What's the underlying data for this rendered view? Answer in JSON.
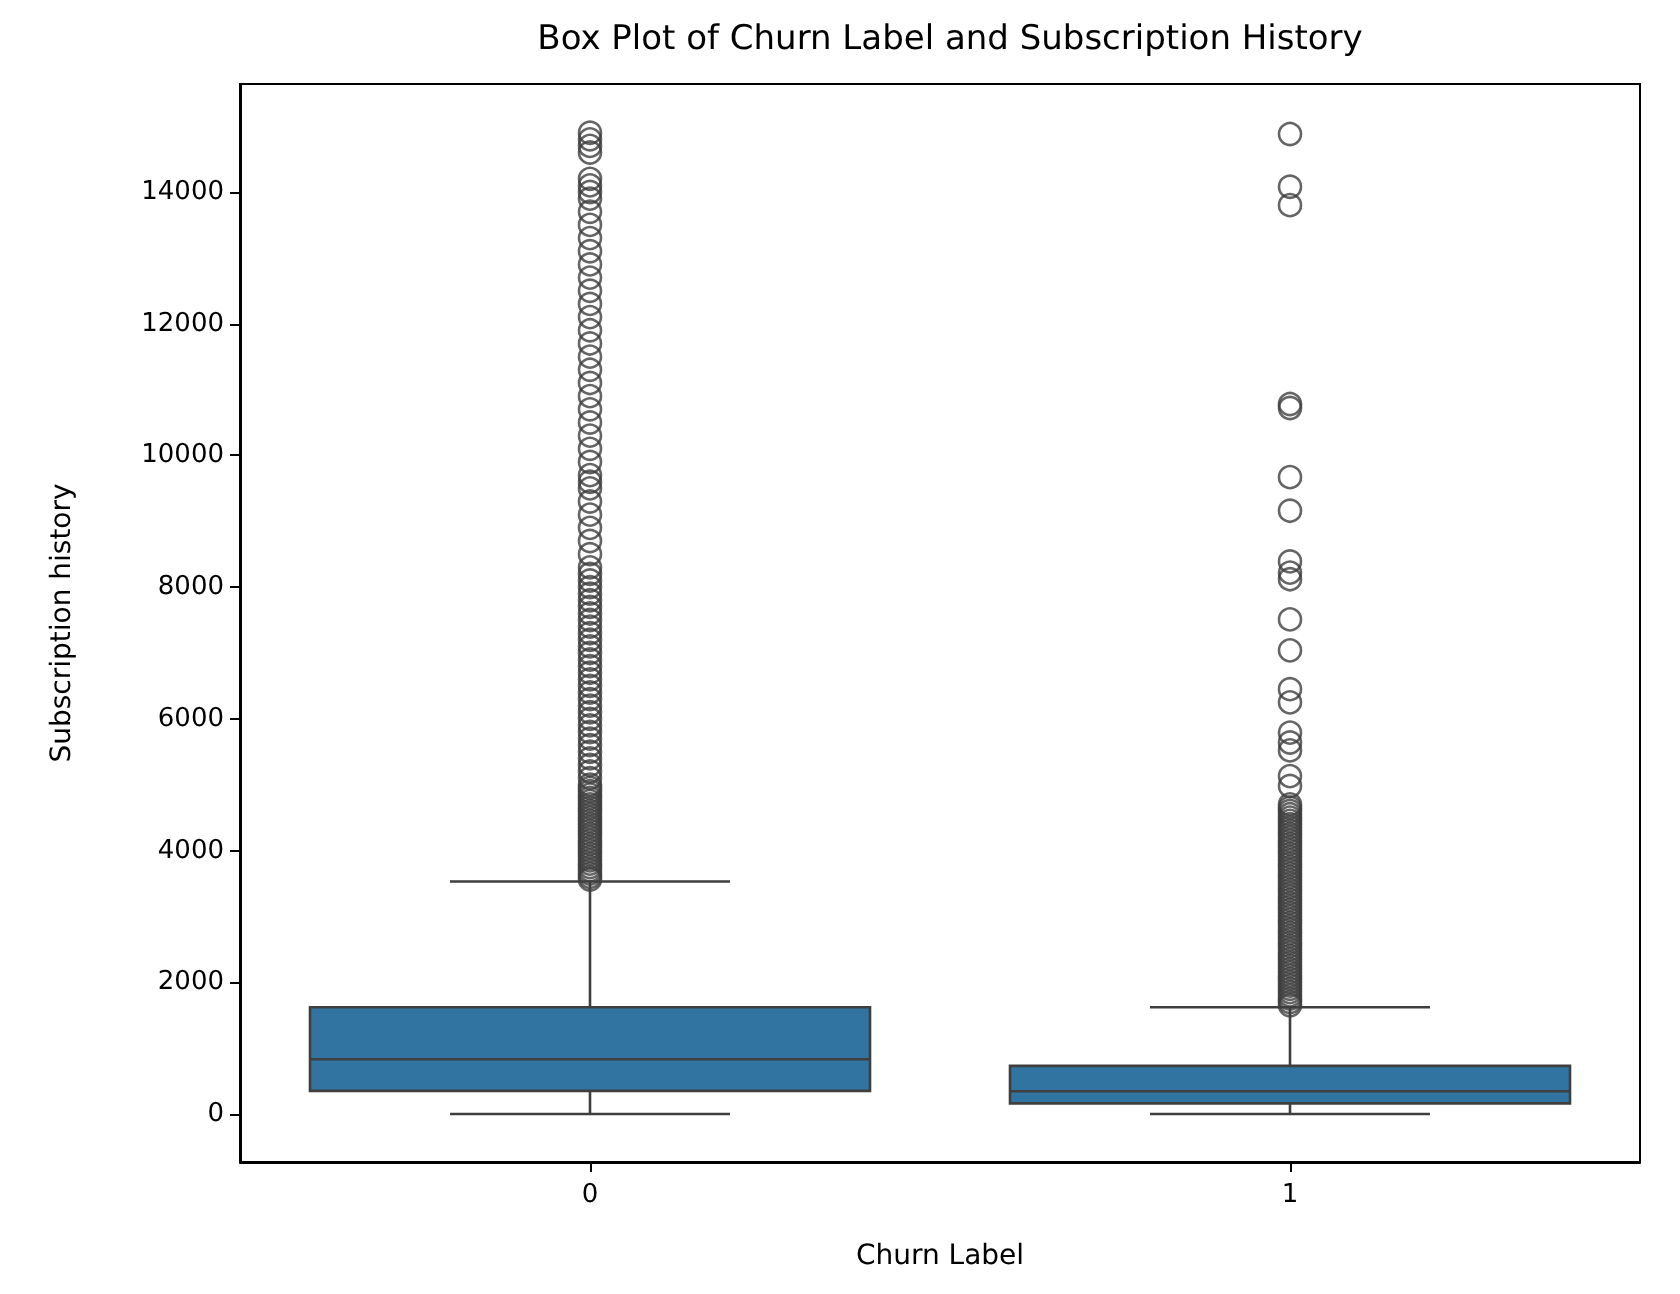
{
  "chart_data": {
    "type": "box",
    "title": "Box Plot of Churn Label and Subscription History",
    "xlabel": "Churn Label",
    "ylabel": "Subscription history",
    "categories": [
      "0",
      "1"
    ],
    "color": "#3274a1",
    "boxes": [
      {
        "low": 0,
        "q1": 350,
        "median": 830,
        "q3": 1620,
        "high": 3530,
        "outliers": [
          3560,
          3600,
          3650,
          3700,
          3750,
          3800,
          3850,
          3900,
          3950,
          4000,
          4050,
          4100,
          4150,
          4200,
          4250,
          4300,
          4350,
          4400,
          4450,
          4500,
          4550,
          4600,
          4650,
          4700,
          4750,
          4800,
          4850,
          4900,
          4950,
          5000,
          5100,
          5200,
          5300,
          5400,
          5500,
          5600,
          5700,
          5800,
          5900,
          6000,
          6100,
          6200,
          6300,
          6400,
          6500,
          6600,
          6700,
          6800,
          6900,
          7000,
          7100,
          7200,
          7300,
          7400,
          7500,
          7600,
          7700,
          7800,
          7900,
          8000,
          8100,
          8200,
          8300,
          8500,
          8700,
          8900,
          9100,
          9300,
          9500,
          9600,
          9700,
          9900,
          10100,
          10300,
          10500,
          10700,
          10900,
          11100,
          11300,
          11500,
          11700,
          11900,
          12100,
          12300,
          12500,
          12700,
          12900,
          13100,
          13300,
          13500,
          13700,
          13900,
          14000,
          14100,
          14200,
          14600,
          14700,
          14800,
          14900
        ]
      },
      {
        "low": 0,
        "q1": 160,
        "median": 345,
        "q3": 730,
        "high": 1620,
        "outliers": [
          1650,
          1700,
          1750,
          1800,
          1850,
          1900,
          1950,
          2000,
          2050,
          2100,
          2150,
          2200,
          2250,
          2300,
          2350,
          2400,
          2450,
          2500,
          2550,
          2600,
          2650,
          2700,
          2750,
          2800,
          2850,
          2900,
          2950,
          3000,
          3050,
          3100,
          3150,
          3200,
          3250,
          3300,
          3350,
          3400,
          3450,
          3500,
          3550,
          3600,
          3650,
          3700,
          3750,
          3800,
          3850,
          3900,
          3950,
          4000,
          4050,
          4100,
          4150,
          4200,
          4250,
          4300,
          4350,
          4400,
          4450,
          4500,
          4550,
          4600,
          4650,
          4700,
          4980,
          5130,
          5520,
          5640,
          5790,
          6250,
          6450,
          7040,
          7510,
          8120,
          8220,
          8390,
          9160,
          9670,
          10720,
          10780,
          13800,
          14080,
          14880
        ]
      }
    ],
    "ylim": [
      -730,
      15640
    ],
    "yticks": [
      0,
      2000,
      4000,
      6000,
      8000,
      10000,
      12000,
      14000
    ]
  }
}
